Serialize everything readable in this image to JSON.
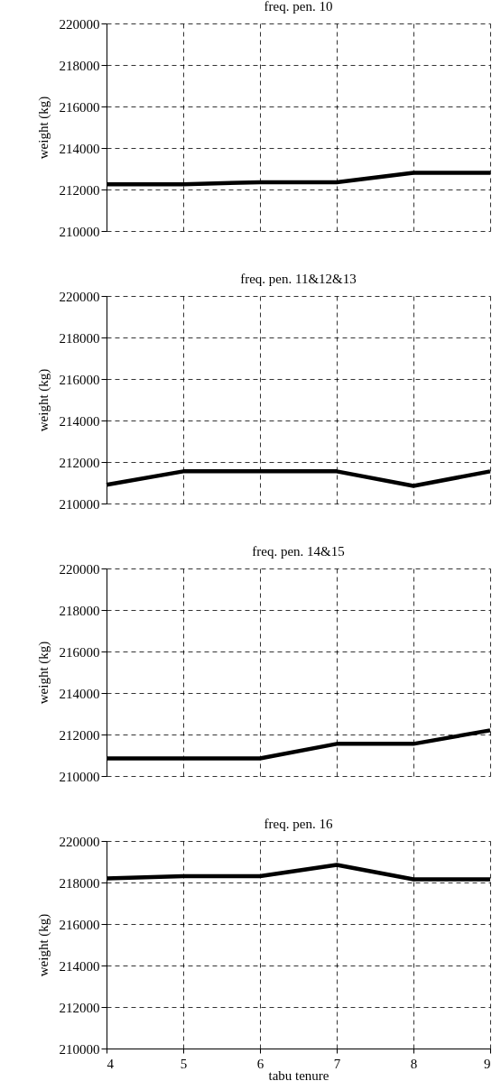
{
  "chart_data": [
    {
      "type": "line",
      "title": "freq. pen. 10",
      "ylabel": "weight (kg)",
      "x": [
        4,
        5,
        6,
        7,
        8,
        9
      ],
      "series": [
        {
          "color": "#000000",
          "values": [
            212250,
            212250,
            212350,
            212350,
            212800,
            212800
          ]
        }
      ],
      "xlim": [
        4,
        9
      ],
      "xticks": [
        4,
        5,
        6,
        7,
        8,
        9
      ],
      "ylim": [
        210000,
        220000
      ],
      "yticks": [
        210000,
        212000,
        214000,
        216000,
        218000,
        220000
      ],
      "grid": true,
      "tick_labels": "y"
    },
    {
      "type": "line",
      "title": "freq. pen. 11&12&13",
      "ylabel": "weight (kg)",
      "x": [
        4,
        5,
        6,
        7,
        8,
        9
      ],
      "series": [
        {
          "color": "#000000",
          "values": [
            210900,
            211550,
            211550,
            211550,
            210850,
            211550
          ]
        }
      ],
      "xlim": [
        4,
        9
      ],
      "xticks": [
        4,
        5,
        6,
        7,
        8,
        9
      ],
      "ylim": [
        210000,
        220000
      ],
      "yticks": [
        210000,
        212000,
        214000,
        216000,
        218000,
        220000
      ],
      "grid": true,
      "tick_labels": "y"
    },
    {
      "type": "line",
      "title": "freq. pen. 14&15",
      "ylabel": "weight (kg)",
      "x": [
        4,
        5,
        6,
        7,
        8,
        9
      ],
      "series": [
        {
          "color": "#000000",
          "values": [
            210850,
            210850,
            210850,
            211550,
            211550,
            212200
          ]
        }
      ],
      "xlim": [
        4,
        9
      ],
      "xticks": [
        4,
        5,
        6,
        7,
        8,
        9
      ],
      "ylim": [
        210000,
        220000
      ],
      "yticks": [
        210000,
        212000,
        214000,
        216000,
        218000,
        220000
      ],
      "grid": true,
      "tick_labels": "y"
    },
    {
      "type": "line",
      "title": "freq. pen. 16",
      "xlabel": "tabu tenure",
      "ylabel": "weight (kg)",
      "x": [
        4,
        5,
        6,
        7,
        8,
        9
      ],
      "series": [
        {
          "color": "#000000",
          "values": [
            218200,
            218300,
            218300,
            218850,
            218150,
            218150
          ]
        }
      ],
      "xlim": [
        4,
        9
      ],
      "xticks": [
        4,
        5,
        6,
        7,
        8,
        9
      ],
      "ylim": [
        210000,
        220000
      ],
      "yticks": [
        210000,
        212000,
        214000,
        216000,
        218000,
        220000
      ],
      "grid": true
    }
  ]
}
